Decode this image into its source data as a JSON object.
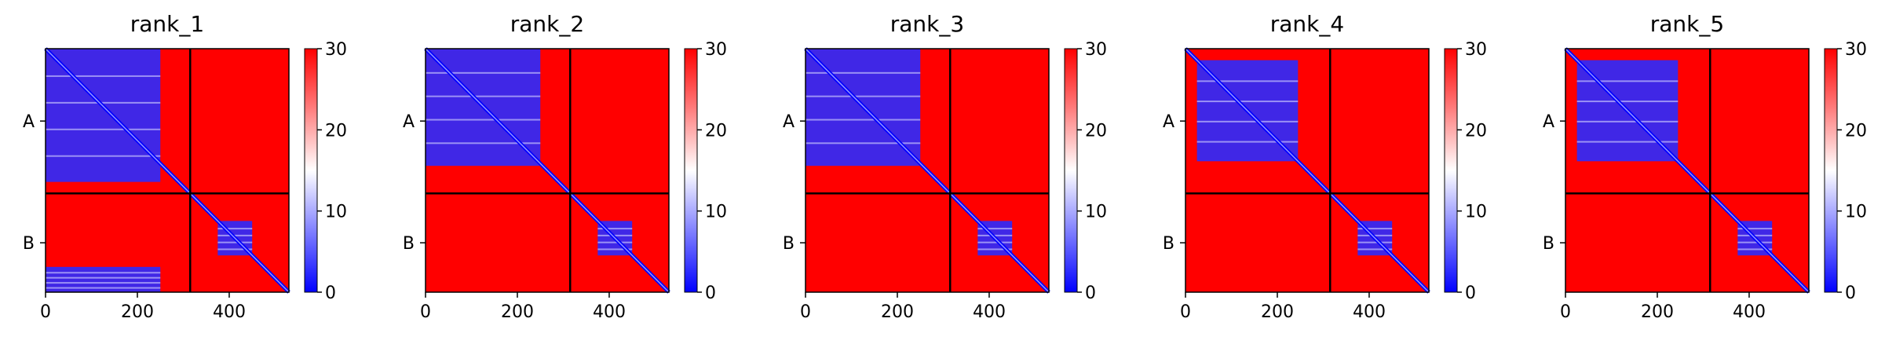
{
  "chart_data": [
    {
      "type": "heatmap",
      "title": "rank_1",
      "x_ticks": [
        0,
        200,
        400
      ],
      "xlim": [
        0,
        530
      ],
      "y_ticks": [
        "A",
        "B"
      ],
      "chain_boundary": 315,
      "chain_a_length": 315,
      "chain_b_length": 215,
      "colorbar": {
        "ticks": [
          0,
          10,
          20,
          30
        ],
        "range": [
          0,
          30
        ],
        "colors": [
          "#0000ff",
          "#ffffff",
          "#ff0000"
        ]
      },
      "low_error_blocks": [
        {
          "x": [
            0,
            250
          ],
          "y": [
            0,
            290
          ]
        },
        {
          "x": [
            0,
            250
          ],
          "y": [
            475,
            530
          ]
        },
        {
          "x": [
            375,
            450
          ],
          "y": [
            375,
            450
          ]
        }
      ]
    },
    {
      "type": "heatmap",
      "title": "rank_2",
      "x_ticks": [
        0,
        200,
        400
      ],
      "xlim": [
        0,
        530
      ],
      "y_ticks": [
        "A",
        "B"
      ],
      "chain_boundary": 315,
      "chain_a_length": 315,
      "chain_b_length": 215,
      "colorbar": {
        "ticks": [
          0,
          10,
          20,
          30
        ],
        "range": [
          0,
          30
        ],
        "colors": [
          "#0000ff",
          "#ffffff",
          "#ff0000"
        ]
      },
      "low_error_blocks": [
        {
          "x": [
            0,
            250
          ],
          "y": [
            0,
            255
          ]
        },
        {
          "x": [
            375,
            450
          ],
          "y": [
            375,
            450
          ]
        }
      ]
    },
    {
      "type": "heatmap",
      "title": "rank_3",
      "x_ticks": [
        0,
        200,
        400
      ],
      "xlim": [
        0,
        530
      ],
      "y_ticks": [
        "A",
        "B"
      ],
      "chain_boundary": 315,
      "chain_a_length": 315,
      "chain_b_length": 215,
      "colorbar": {
        "ticks": [
          0,
          10,
          20,
          30
        ],
        "range": [
          0,
          30
        ],
        "colors": [
          "#0000ff",
          "#ffffff",
          "#ff0000"
        ]
      },
      "low_error_blocks": [
        {
          "x": [
            0,
            250
          ],
          "y": [
            0,
            255
          ]
        },
        {
          "x": [
            375,
            450
          ],
          "y": [
            375,
            450
          ]
        }
      ]
    },
    {
      "type": "heatmap",
      "title": "rank_4",
      "x_ticks": [
        0,
        200,
        400
      ],
      "xlim": [
        0,
        530
      ],
      "y_ticks": [
        "A",
        "B"
      ],
      "chain_boundary": 315,
      "chain_a_length": 315,
      "chain_b_length": 215,
      "colorbar": {
        "ticks": [
          0,
          10,
          20,
          30
        ],
        "range": [
          0,
          30
        ],
        "colors": [
          "#0000ff",
          "#ffffff",
          "#ff0000"
        ]
      },
      "low_error_blocks": [
        {
          "x": [
            25,
            245
          ],
          "y": [
            25,
            245
          ]
        },
        {
          "x": [
            375,
            450
          ],
          "y": [
            375,
            450
          ]
        }
      ]
    },
    {
      "type": "heatmap",
      "title": "rank_5",
      "x_ticks": [
        0,
        200,
        400
      ],
      "xlim": [
        0,
        530
      ],
      "y_ticks": [
        "A",
        "B"
      ],
      "chain_boundary": 315,
      "chain_a_length": 315,
      "chain_b_length": 215,
      "colorbar": {
        "ticks": [
          0,
          10,
          20,
          30
        ],
        "range": [
          0,
          30
        ],
        "colors": [
          "#0000ff",
          "#ffffff",
          "#ff0000"
        ]
      },
      "low_error_blocks": [
        {
          "x": [
            25,
            245
          ],
          "y": [
            25,
            245
          ]
        },
        {
          "x": [
            375,
            450
          ],
          "y": [
            375,
            450
          ]
        }
      ]
    }
  ]
}
